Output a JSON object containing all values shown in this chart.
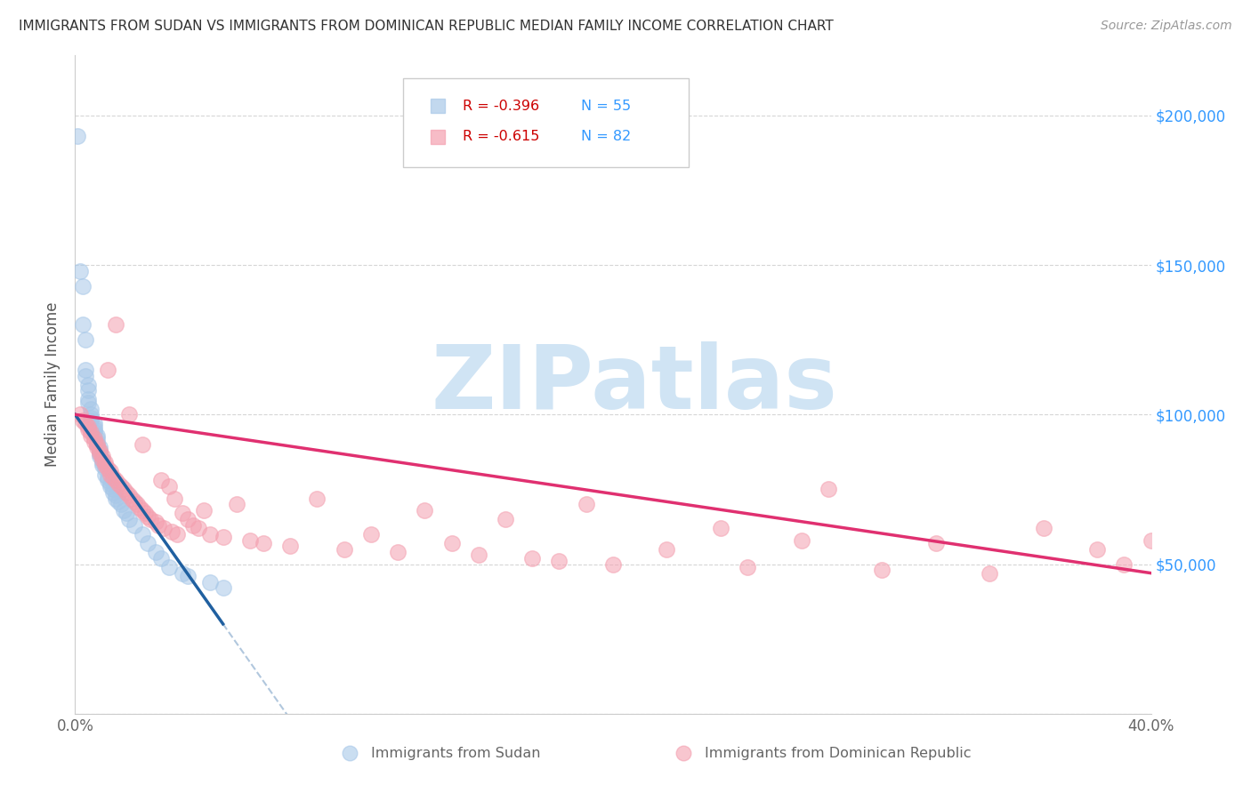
{
  "title": "IMMIGRANTS FROM SUDAN VS IMMIGRANTS FROM DOMINICAN REPUBLIC MEDIAN FAMILY INCOME CORRELATION CHART",
  "source": "Source: ZipAtlas.com",
  "ylabel": "Median Family Income",
  "xlim": [
    0.0,
    0.4
  ],
  "ylim": [
    0,
    220000
  ],
  "yticks": [
    0,
    50000,
    100000,
    150000,
    200000
  ],
  "ytick_labels": [
    "",
    "$50,000",
    "$100,000",
    "$150,000",
    "$200,000"
  ],
  "xticks": [
    0.0,
    0.05,
    0.1,
    0.15,
    0.2,
    0.25,
    0.3,
    0.35,
    0.4
  ],
  "xtick_labels": [
    "0.0%",
    "",
    "",
    "",
    "",
    "",
    "",
    "",
    "40.0%"
  ],
  "legend_r1": "R = -0.396",
  "legend_n1": "N = 55",
  "legend_r2": "R = -0.615",
  "legend_n2": "N = 82",
  "color_sudan": "#a8c8e8",
  "color_dr": "#f4a0b0",
  "color_sudan_line": "#2060a0",
  "color_dr_line": "#e03070",
  "color_r_value": "#cc0000",
  "color_n_value": "#3399ff",
  "watermark_color": "#d0e4f4",
  "background_color": "#ffffff",
  "sudan_x": [
    0.001,
    0.002,
    0.003,
    0.003,
    0.004,
    0.004,
    0.004,
    0.005,
    0.005,
    0.005,
    0.005,
    0.006,
    0.006,
    0.006,
    0.006,
    0.007,
    0.007,
    0.007,
    0.007,
    0.008,
    0.008,
    0.008,
    0.008,
    0.009,
    0.009,
    0.009,
    0.009,
    0.01,
    0.01,
    0.01,
    0.011,
    0.011,
    0.012,
    0.012,
    0.013,
    0.013,
    0.014,
    0.014,
    0.015,
    0.015,
    0.016,
    0.017,
    0.018,
    0.019,
    0.02,
    0.022,
    0.025,
    0.027,
    0.03,
    0.032,
    0.035,
    0.04,
    0.042,
    0.05,
    0.055
  ],
  "sudan_y": [
    193000,
    148000,
    143000,
    130000,
    125000,
    115000,
    113000,
    110000,
    108000,
    105000,
    104000,
    102000,
    100000,
    99000,
    98000,
    97000,
    96000,
    95000,
    94000,
    93000,
    92000,
    91000,
    90000,
    89000,
    88000,
    87000,
    86000,
    85000,
    84000,
    83000,
    82000,
    80000,
    79000,
    78000,
    77000,
    76000,
    75000,
    74000,
    73000,
    72000,
    71000,
    70000,
    68000,
    67000,
    65000,
    63000,
    60000,
    57000,
    54000,
    52000,
    49000,
    47000,
    46000,
    44000,
    42000
  ],
  "dr_x": [
    0.002,
    0.003,
    0.004,
    0.005,
    0.005,
    0.006,
    0.006,
    0.007,
    0.007,
    0.008,
    0.008,
    0.009,
    0.009,
    0.01,
    0.01,
    0.011,
    0.011,
    0.012,
    0.012,
    0.013,
    0.013,
    0.014,
    0.015,
    0.015,
    0.016,
    0.017,
    0.018,
    0.019,
    0.02,
    0.02,
    0.021,
    0.022,
    0.023,
    0.024,
    0.025,
    0.025,
    0.026,
    0.027,
    0.028,
    0.03,
    0.031,
    0.032,
    0.033,
    0.035,
    0.036,
    0.037,
    0.038,
    0.04,
    0.042,
    0.044,
    0.046,
    0.048,
    0.05,
    0.055,
    0.06,
    0.065,
    0.07,
    0.08,
    0.09,
    0.1,
    0.11,
    0.12,
    0.13,
    0.14,
    0.15,
    0.16,
    0.17,
    0.18,
    0.19,
    0.2,
    0.22,
    0.24,
    0.25,
    0.27,
    0.28,
    0.3,
    0.32,
    0.34,
    0.36,
    0.38,
    0.39,
    0.4
  ],
  "dr_y": [
    100000,
    98000,
    97000,
    96000,
    95000,
    94000,
    93000,
    92000,
    91000,
    90000,
    89000,
    88000,
    87000,
    86000,
    85000,
    84000,
    83000,
    115000,
    82000,
    81000,
    80000,
    79000,
    78000,
    130000,
    77000,
    76000,
    75000,
    74000,
    73000,
    100000,
    72000,
    71000,
    70000,
    69000,
    68000,
    90000,
    67000,
    66000,
    65000,
    64000,
    63000,
    78000,
    62000,
    76000,
    61000,
    72000,
    60000,
    67000,
    65000,
    63000,
    62000,
    68000,
    60000,
    59000,
    70000,
    58000,
    57000,
    56000,
    72000,
    55000,
    60000,
    54000,
    68000,
    57000,
    53000,
    65000,
    52000,
    51000,
    70000,
    50000,
    55000,
    62000,
    49000,
    58000,
    75000,
    48000,
    57000,
    47000,
    62000,
    55000,
    50000,
    58000
  ]
}
